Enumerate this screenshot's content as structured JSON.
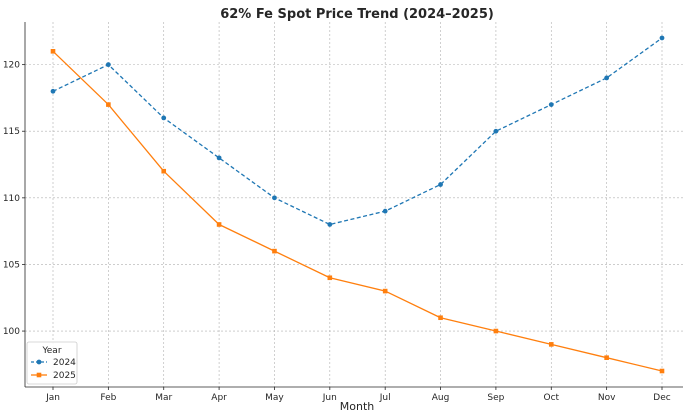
{
  "chart_data": {
    "type": "line",
    "title": "62% Fe Spot Price Trend (2024–2025)",
    "xlabel": "Month",
    "ylabel": "",
    "categories": [
      "Jan",
      "Feb",
      "Mar",
      "Apr",
      "May",
      "Jun",
      "Jul",
      "Aug",
      "Sep",
      "Oct",
      "Nov",
      "Dec"
    ],
    "ylim": [
      95.8,
      123.2
    ],
    "yticks": [
      100,
      105,
      110,
      115,
      120
    ],
    "grid": true,
    "legend": {
      "title": "Year",
      "placement": "lower-left"
    },
    "series": [
      {
        "name": "2024",
        "color": "#1f77b4",
        "line_style": "dashed",
        "marker": "circle",
        "values": [
          118,
          120,
          116,
          113,
          110,
          108,
          109,
          111,
          115,
          117,
          119,
          122
        ]
      },
      {
        "name": "2025",
        "color": "#ff7f0e",
        "line_style": "solid",
        "marker": "square",
        "values": [
          121,
          117,
          112,
          108,
          106,
          104,
          103,
          101,
          100,
          99,
          98,
          97
        ]
      }
    ]
  }
}
